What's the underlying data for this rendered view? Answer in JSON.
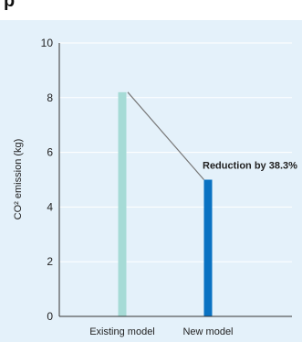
{
  "header_fragment": "p",
  "chart_data": {
    "type": "bar",
    "categories": [
      "Existing model",
      "New model"
    ],
    "values": [
      8.2,
      5.0
    ],
    "ylabel": "CO² emission (kg)",
    "xlabel": "",
    "title": "",
    "ylim": [
      0,
      10
    ],
    "yticks": [
      0,
      2,
      4,
      6,
      8,
      10
    ],
    "grid": true,
    "bar_colors": [
      "#a6dbd6",
      "#0a72c2"
    ],
    "connector_color": "#777777",
    "annotation": "Reduction by 38.3%",
    "annotation_target": "New model"
  }
}
